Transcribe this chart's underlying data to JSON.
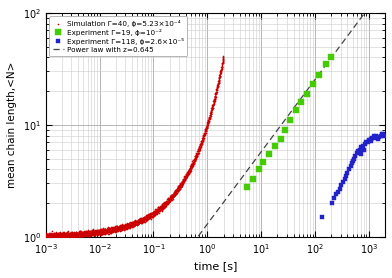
{
  "xlabel": "time [s]",
  "ylabel": "mean chain length,<N>",
  "xmin": 0.001,
  "xmax": 2000,
  "ymin": 1.0,
  "ymax": 100,
  "power_law_exponent": 0.645,
  "power_law_amplitude": 1.3,
  "legend_entries": [
    "Simulation Γ=40, ϕ=5.23×10⁻⁴",
    "Experiment Γ=19, ϕ=10⁻²",
    "Experiment Γ=118, ϕ=2.6×10⁻⁵",
    "Power law with z=0.645"
  ],
  "sim_color": "#cc0000",
  "exp1_color": "#44cc00",
  "exp2_color": "#2222cc",
  "powerlaw_color": "#444444",
  "background_color": "#ffffff",
  "grid_major_color": "#aaaaaa",
  "grid_minor_color": "#cccccc",
  "sim_a": 2.3,
  "sim_b": 0.68,
  "exp1_t": [
    5.5,
    7,
    9,
    11,
    14,
    18,
    23,
    28,
    35,
    45,
    55,
    70,
    90,
    120,
    160,
    200
  ],
  "exp1_N": [
    2.8,
    3.3,
    4.0,
    4.7,
    5.5,
    6.5,
    7.5,
    9.0,
    11.0,
    13.5,
    16.0,
    19.0,
    23.0,
    28.0,
    35.0,
    40.0
  ],
  "exp2_t": [
    210,
    230,
    250,
    270,
    290,
    310,
    330,
    355,
    380,
    400,
    430,
    460,
    490,
    520,
    560,
    600,
    640,
    680,
    730,
    780,
    840,
    900,
    960,
    1020,
    1090,
    1160,
    1250,
    1350,
    1450,
    1550,
    1650,
    1750,
    1850,
    1950,
    135,
    500,
    700,
    800,
    1100,
    1300
  ],
  "exp2_N": [
    2.0,
    2.2,
    2.4,
    2.5,
    2.7,
    2.9,
    3.1,
    3.3,
    3.5,
    3.7,
    4.0,
    4.3,
    4.6,
    5.0,
    5.3,
    5.6,
    5.8,
    6.0,
    6.3,
    6.5,
    6.8,
    7.0,
    7.1,
    7.3,
    7.5,
    7.7,
    7.9,
    8.0,
    7.5,
    7.8,
    8.0,
    8.2,
    8.3,
    8.0,
    1.5,
    4.8,
    5.5,
    6.0,
    7.2,
    7.6
  ]
}
